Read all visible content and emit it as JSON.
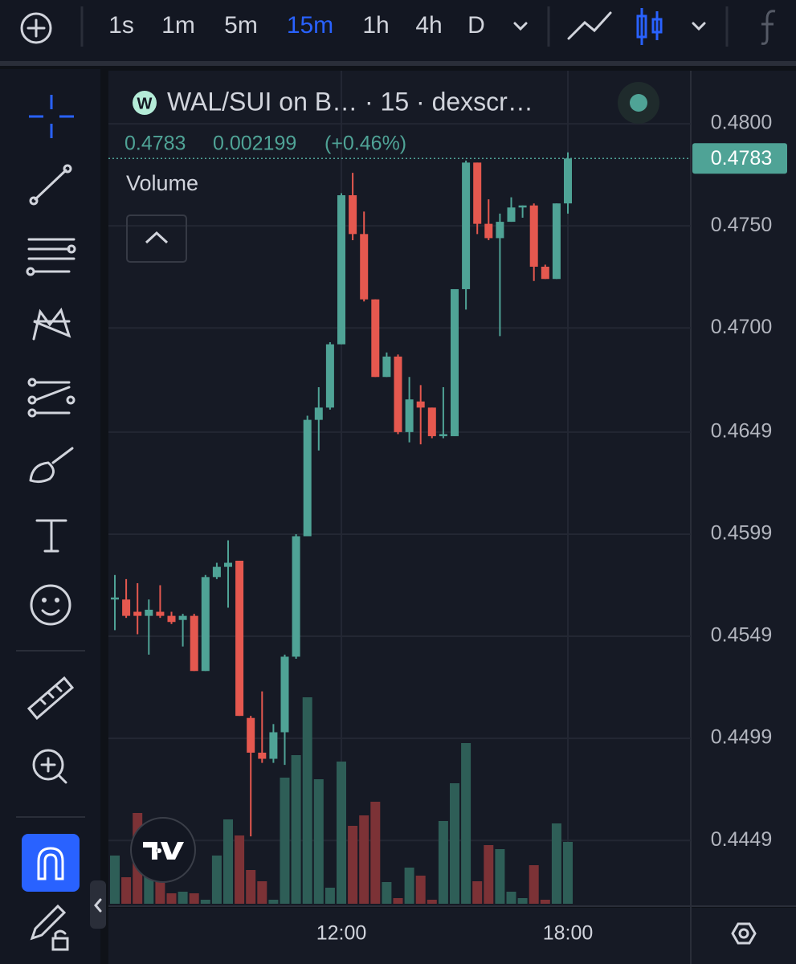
{
  "toolbar": {
    "intervals": [
      "1s",
      "1m",
      "5m",
      "15m",
      "1h",
      "4h",
      "D"
    ],
    "active": "15m"
  },
  "chart_data": {
    "type": "candlestick",
    "title": "WAL/SUI on B… · 15 · dexscr…",
    "logo": "W",
    "last_price": 0.4783,
    "change": 0.002199,
    "change_pct": {
      "value": 0.46,
      "label": "(+0.46%)"
    },
    "volume_label": "Volume",
    "categories": [
      null,
      null,
      null,
      null,
      null,
      null,
      null,
      null,
      null,
      null,
      null,
      null,
      null,
      null,
      null,
      null,
      null,
      null,
      null,
      null,
      "12:00",
      null,
      null,
      null,
      null,
      null,
      null,
      null,
      null,
      null,
      null,
      null,
      null,
      null,
      null,
      null,
      null,
      null,
      null,
      null,
      "18:00"
    ],
    "open": [
      0.4567,
      0.4567,
      0.4561,
      0.4559,
      0.4561,
      0.4559,
      0.4557,
      0.4559,
      0.4532,
      0.4578,
      0.4583,
      0.4586,
      0.4509,
      0.4492,
      0.4489,
      0.4502,
      0.4539,
      0.4598,
      0.4655,
      0.4661,
      0.4692,
      0.4765,
      0.4746,
      0.4714,
      0.4676,
      0.4686,
      0.4649,
      0.4664,
      0.4661,
      0.4647,
      0.4647,
      0.4719,
      0.4781,
      0.4751,
      0.4744,
      0.4752,
      0.4759,
      0.476,
      0.473,
      0.4724,
      0.4761
    ],
    "high": [
      0.4579,
      0.4577,
      0.4575,
      0.4567,
      0.4574,
      0.4561,
      0.456,
      0.456,
      0.4579,
      0.4585,
      0.4596,
      0.4586,
      0.451,
      0.4522,
      0.4506,
      0.454,
      0.4599,
      0.4657,
      0.4671,
      0.4693,
      0.4766,
      0.4776,
      0.4757,
      0.4714,
      0.4688,
      0.4687,
      0.4676,
      0.4672,
      0.4661,
      0.4671,
      0.4719,
      0.4782,
      0.4781,
      0.4763,
      0.4756,
      0.4764,
      0.476,
      0.4761,
      0.4731,
      0.4761,
      0.4786
    ],
    "low": [
      0.4552,
      0.4558,
      0.455,
      0.454,
      0.4558,
      0.4555,
      0.4544,
      0.4532,
      0.4532,
      0.4577,
      0.4563,
      0.451,
      0.4451,
      0.4487,
      0.4487,
      0.4486,
      0.4538,
      0.4598,
      0.464,
      0.466,
      0.4692,
      0.4743,
      0.4713,
      0.4676,
      0.4676,
      0.4648,
      0.4644,
      0.4643,
      0.4646,
      0.4646,
      0.4647,
      0.4709,
      0.4746,
      0.4743,
      0.4696,
      0.4752,
      0.4754,
      0.4723,
      0.4724,
      0.4724,
      0.4756
    ],
    "close": [
      0.4568,
      0.4559,
      0.4559,
      0.4562,
      0.4559,
      0.4556,
      0.4559,
      0.4532,
      0.4578,
      0.4583,
      0.4585,
      0.451,
      0.4492,
      0.4489,
      0.4502,
      0.4539,
      0.4598,
      0.4655,
      0.4661,
      0.4692,
      0.4765,
      0.4746,
      0.4714,
      0.4676,
      0.4686,
      0.4649,
      0.4665,
      0.4661,
      0.4647,
      0.4648,
      0.4719,
      0.4781,
      0.4751,
      0.4744,
      0.4752,
      0.4759,
      0.476,
      0.473,
      0.4724,
      0.4761,
      0.4783
    ],
    "volume": [
      60,
      33,
      113,
      55,
      28,
      13,
      15,
      13,
      5,
      60,
      105,
      85,
      42,
      28,
      5,
      157,
      185,
      257,
      155,
      20,
      177,
      97,
      110,
      127,
      27,
      7,
      45,
      35,
      5,
      103,
      150,
      200,
      28,
      73,
      68,
      15,
      7,
      48,
      5,
      100,
      77
    ],
    "ylim": [
      0.4418,
      0.4826
    ],
    "yticks": [
      {
        "value": 0.48,
        "label": "0.4800"
      },
      {
        "value": 0.475,
        "label": "0.4750"
      },
      {
        "value": 0.47,
        "label": "0.4700"
      },
      0.4649,
      0.4599,
      0.4549,
      0.4499,
      0.4449
    ],
    "up_color": "#4fa396",
    "down_color": "#e5584f",
    "volume_up_color": "#2e5e57",
    "volume_down_color": "#7c3236",
    "grid": true
  }
}
